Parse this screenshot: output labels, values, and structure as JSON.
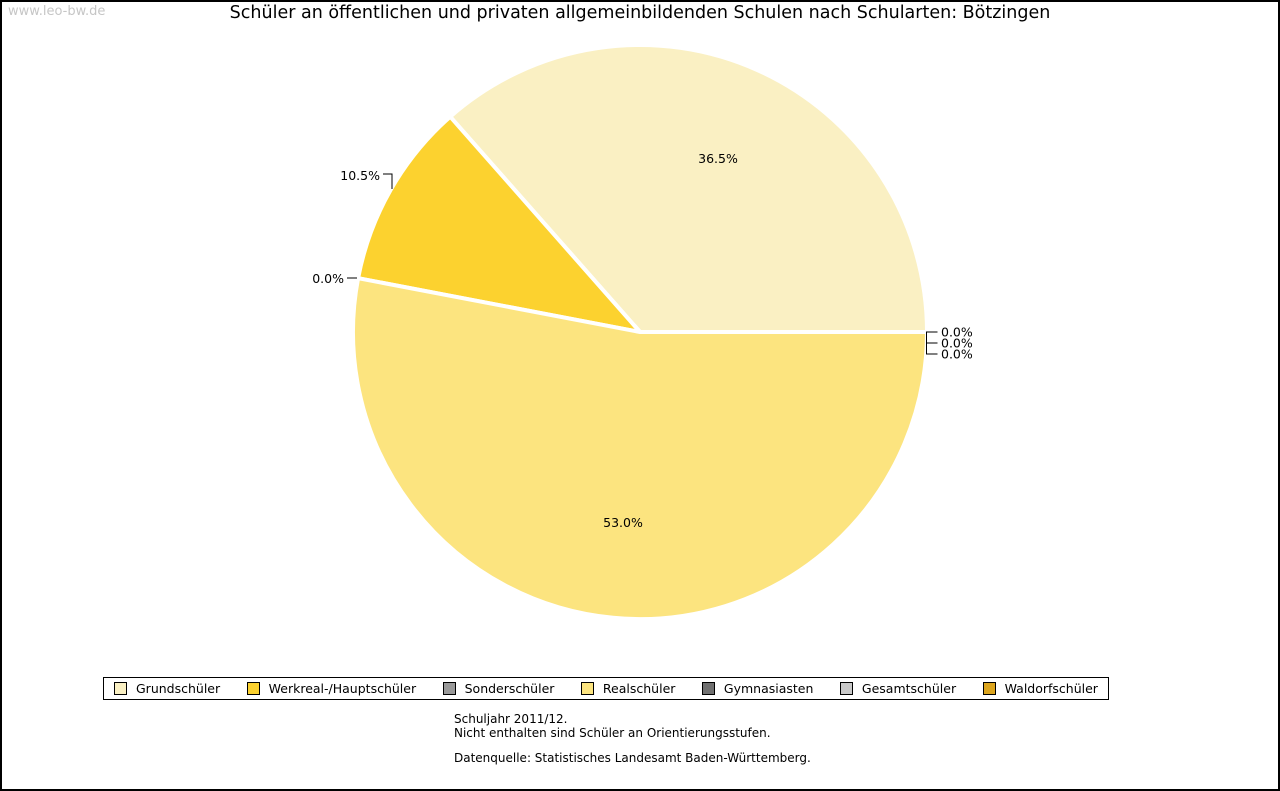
{
  "watermark": "www.leo-bw.de",
  "title": "Schüler an öffentlichen und privaten allgemeinbildenden Schulen nach Schularten: Bötzingen",
  "chart_data": {
    "type": "pie",
    "title": "Schüler an öffentlichen und privaten allgemeinbildenden Schulen nach Schularten: Bötzingen",
    "unit": "percent",
    "start_angle_deg": 0,
    "direction": "counterclockwise",
    "legend_position": "bottom",
    "slices": [
      {
        "label": "Grundschüler",
        "value": 36.5,
        "display": "36.5%",
        "color": "#faf0c3"
      },
      {
        "label": "Werkreal-/Hauptschüler",
        "value": 10.5,
        "display": "10.5%",
        "color": "#fcd22f"
      },
      {
        "label": "Sonderschüler",
        "value": 0.0,
        "display": "0.0%",
        "color": "#999999"
      },
      {
        "label": "Realschüler",
        "value": 53.0,
        "display": "53.0%",
        "color": "#fce47f"
      },
      {
        "label": "Gymnasiasten",
        "value": 0.0,
        "display": "0.0%",
        "color": "#707070"
      },
      {
        "label": "Gesamtschüler",
        "value": 0.0,
        "display": "0.0%",
        "color": "#c9c9c9"
      },
      {
        "label": "Waldorfschüler",
        "value": 0.0,
        "display": "0.0%",
        "color": "#dca51e"
      }
    ]
  },
  "footnotes": {
    "line1": "Schuljahr 2011/12.",
    "line2": "Nicht enthalten sind Schüler an Orientierungsstufen.",
    "source": "Datenquelle: Statistisches Landesamt Baden-Württemberg."
  },
  "colors": {
    "border": "#000000",
    "background": "#ffffff",
    "watermark_gray": "#c6c6c6",
    "slice_separator": "#ffffff"
  }
}
